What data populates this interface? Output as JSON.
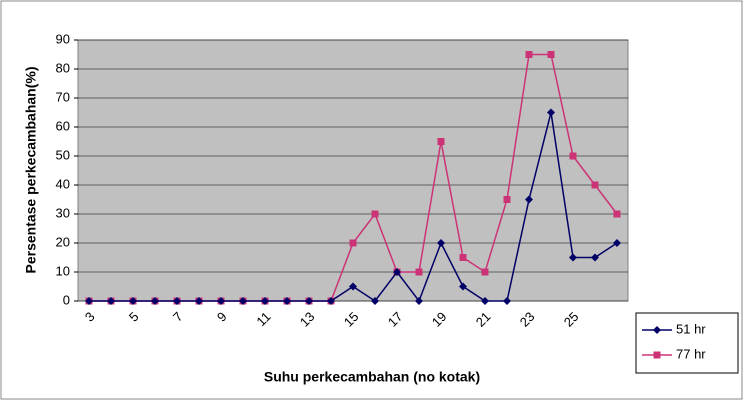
{
  "chart_data": {
    "type": "line",
    "x_label": "Suhu perkecambahan (no kotak)",
    "y_label": "Persentase perkecambahan(%)",
    "categories": [
      "3",
      null,
      "5",
      null,
      "7",
      null,
      "9",
      null,
      "11",
      null,
      "13",
      null,
      "15",
      null,
      "17",
      null,
      "19",
      null,
      "21",
      null,
      "23",
      null,
      "25",
      null,
      null
    ],
    "series": [
      {
        "name": "51 hr",
        "color": "#000066",
        "values": [
          0,
          0,
          0,
          0,
          0,
          0,
          0,
          0,
          0,
          0,
          0,
          0,
          5,
          0,
          10,
          0,
          20,
          5,
          0,
          0,
          35,
          65,
          15,
          15,
          20
        ]
      },
      {
        "name": "77 hr",
        "color": "#cc3377",
        "values": [
          0,
          0,
          0,
          0,
          0,
          0,
          0,
          0,
          0,
          0,
          0,
          0,
          20,
          30,
          10,
          10,
          55,
          15,
          10,
          35,
          85,
          85,
          50,
          40,
          30
        ]
      }
    ],
    "ylim": [
      0,
      90
    ],
    "yticks": [
      0,
      10,
      20,
      30,
      40,
      50,
      60,
      70,
      80,
      90
    ],
    "grid": true,
    "legend": "right"
  }
}
